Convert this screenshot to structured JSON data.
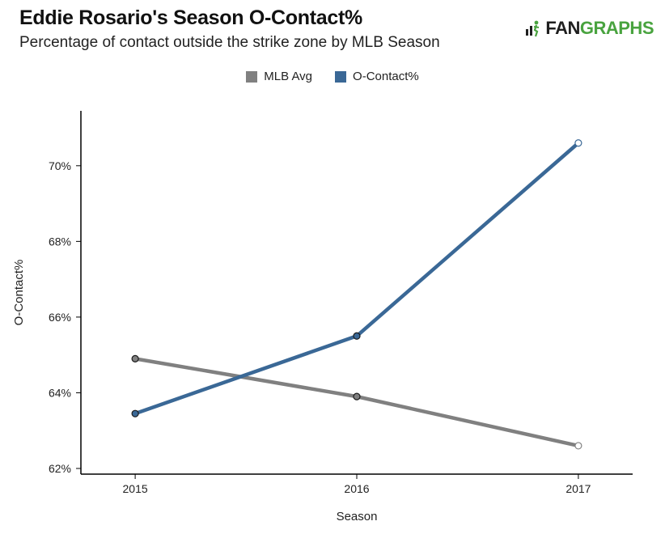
{
  "header": {
    "title": "Eddie Rosario's Season O-Contact%",
    "subtitle": "Percentage of contact outside the strike zone by MLB Season",
    "logo": {
      "prefix": "FAN",
      "suffix": "GRAPHS"
    }
  },
  "colors": {
    "mlb_avg": "#808080",
    "o_contact": "#3a6896",
    "axis": "#000000",
    "brand_green": "#49a33f"
  },
  "chart_data": {
    "type": "line",
    "title": "Eddie Rosario's Season O-Contact%",
    "subtitle": "Percentage of contact outside the strike zone by MLB Season",
    "xlabel": "Season",
    "ylabel": "O-Contact%",
    "x": [
      2015,
      2016,
      2017
    ],
    "x_tick_labels": [
      "2015",
      "2016",
      "2017"
    ],
    "y_ticks": [
      62,
      64,
      66,
      68,
      70
    ],
    "y_tick_labels": [
      "62%",
      "64%",
      "66%",
      "68%",
      "70%"
    ],
    "ylim": [
      61.85,
      71.45
    ],
    "legend_position": "top-center",
    "grid": false,
    "series": [
      {
        "name": "MLB Avg",
        "color": "#808080",
        "values": [
          64.9,
          63.9,
          62.6
        ]
      },
      {
        "name": "O-Contact%",
        "color": "#3a6896",
        "values": [
          63.45,
          65.5,
          70.6
        ]
      }
    ]
  }
}
